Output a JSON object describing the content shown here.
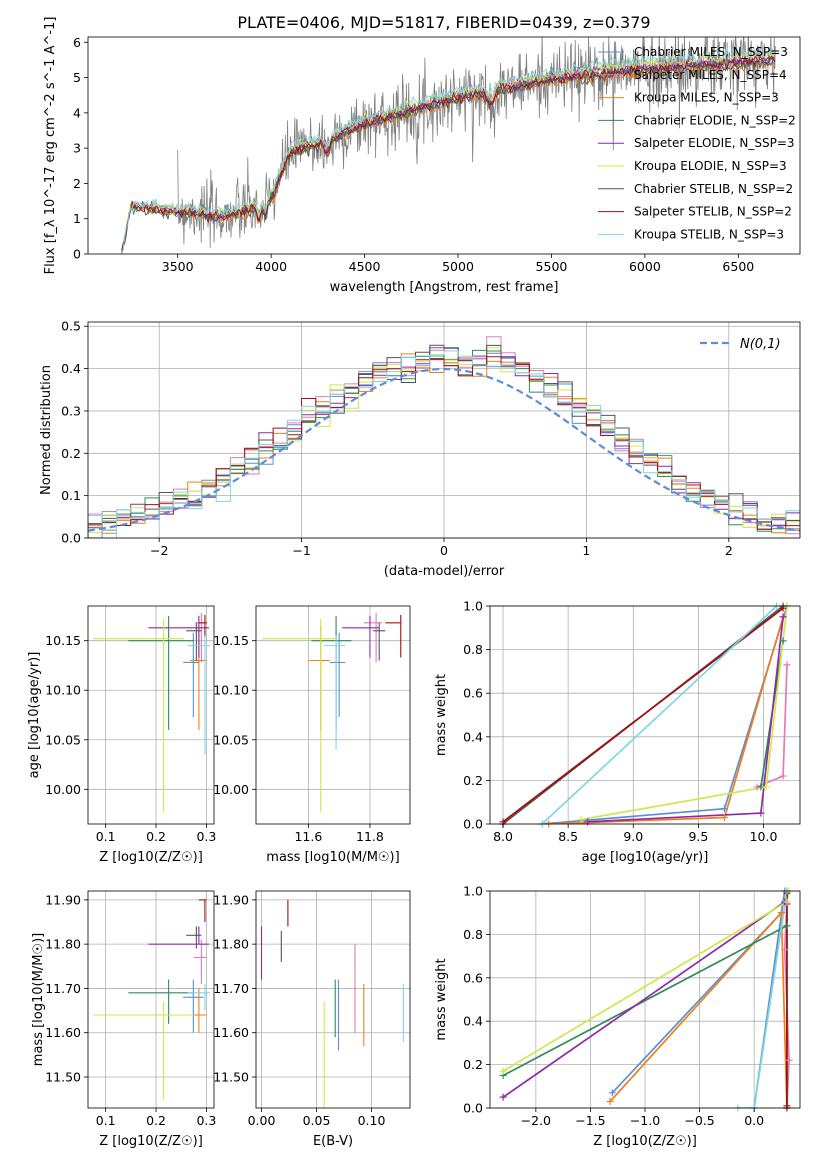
{
  "figure_title": "PLATE=0406, MJD=51817, FIBERID=0439, z=0.379",
  "colors": {
    "Chabrier MILES": "#5b8ed6",
    "Salpeter MILES": "#e37ab8",
    "Kroupa MILES": "#ef7f1a",
    "Chabrier ELODIE": "#2e8b57",
    "Salpeter ELODIE": "#8e2aa8",
    "Kroupa ELODIE": "#cde84a",
    "Chabrier STELIB": "#555555",
    "Salpeter STELIB": "#a01010",
    "Kroupa STELIB": "#7fd6e3",
    "data": "#808080",
    "gaussian": "#5b8ed6"
  },
  "legend_entries": [
    "Chabrier MILES, N_SSP=3",
    "Salpeter MILES, N_SSP=4",
    "Kroupa MILES, N_SSP=3",
    "Chabrier ELODIE, N_SSP=2",
    "Salpeter ELODIE, N_SSP=3",
    "Kroupa ELODIE, N_SSP=3",
    "Chabrier STELIB, N_SSP=2",
    "Salpeter STELIB, N_SSP=2",
    "Kroupa STELIB, N_SSP=3"
  ],
  "chart_data": [
    {
      "id": "spectrum",
      "type": "line",
      "xlabel": "wavelength [Angstrom, rest frame]",
      "ylabel": "Flux [f_λ 10^-17 erg cm^-2 s^-1 A^-1]",
      "xlim": [
        3020,
        6830
      ],
      "ylim": [
        0,
        6.15
      ],
      "xticks": [
        3500,
        4000,
        4500,
        5000,
        5500,
        6000,
        6500
      ],
      "yticks": [
        0,
        1,
        2,
        3,
        4,
        5,
        6
      ],
      "data_range": [
        3500,
        6700
      ],
      "model_range": [
        3200,
        6700
      ],
      "continuum_knots": {
        "x": [
          3200,
          3250,
          3500,
          3600,
          3700,
          3850,
          3950,
          4000,
          4100,
          4300,
          4500,
          4800,
          5000,
          5200,
          5500,
          5800,
          6000,
          6300,
          6700
        ],
        "y": [
          0.0,
          1.35,
          1.2,
          1.2,
          1.05,
          1.2,
          1.4,
          1.6,
          2.9,
          3.2,
          3.7,
          4.15,
          4.45,
          4.65,
          4.95,
          5.15,
          5.25,
          5.35,
          5.5
        ]
      },
      "model_offsets": [
        -0.05,
        0.08,
        -0.1,
        0.0,
        0.05,
        0.12,
        -0.08,
        -0.02,
        0.2
      ]
    },
    {
      "id": "residuals",
      "type": "histogram",
      "xlabel": "(data-model)/error",
      "ylabel": "Normed distribution",
      "xlim": [
        -2.5,
        2.5
      ],
      "ylim": [
        0,
        0.51
      ],
      "xticks": [
        -2,
        -1,
        0,
        1,
        2
      ],
      "yticks": [
        0.0,
        0.1,
        0.2,
        0.3,
        0.4,
        0.5
      ],
      "bin_width": 0.1,
      "reference_label": "N(0,1)"
    },
    {
      "id": "age_vs_Z",
      "type": "errorbar",
      "xlabel": "Z [log10(Z/Z☉)]",
      "ylabel": "age  [log10(age/yr)]",
      "xlim": [
        0.065,
        0.315
      ],
      "ylim": [
        9.965,
        10.185
      ],
      "xticks": [
        0.1,
        0.2,
        0.3
      ],
      "yticks": [
        10.0,
        10.05,
        10.1,
        10.15
      ],
      "points": [
        {
          "x": 0.274,
          "xerr": [
            0.02,
            0.012
          ],
          "y": 10.128,
          "yerr": [
            0.055,
            0.03
          ]
        },
        {
          "x": 0.29,
          "xerr": [
            0.012,
            0.012
          ],
          "y": 10.168,
          "yerr": [
            0.04,
            0.01
          ]
        },
        {
          "x": 0.285,
          "xerr": [
            0.018,
            0.015
          ],
          "y": 10.13,
          "yerr": [
            0.07,
            0.035
          ]
        },
        {
          "x": 0.225,
          "xerr": [
            0.08,
            0.05
          ],
          "y": 10.15,
          "yerr": [
            0.09,
            0.025
          ]
        },
        {
          "x": 0.285,
          "xerr": [
            0.1,
            0.02
          ],
          "y": 10.163,
          "yerr": [
            0.03,
            0.012
          ]
        },
        {
          "x": 0.215,
          "xerr": [
            0.14,
            0.04
          ],
          "y": 10.152,
          "yerr": [
            0.175,
            0.02
          ]
        },
        {
          "x": 0.28,
          "xerr": [
            0.02,
            0.01
          ],
          "y": 10.16,
          "yerr": [
            0.03,
            0.008
          ]
        },
        {
          "x": 0.297,
          "xerr": [
            0.012,
            0.003
          ],
          "y": 10.168,
          "yerr": [
            0.015,
            0.008
          ]
        },
        {
          "x": 0.297,
          "xerr": [
            0.035,
            0.01
          ],
          "y": 10.145,
          "yerr": [
            0.11,
            0.01
          ]
        }
      ]
    },
    {
      "id": "age_vs_mass",
      "type": "errorbar",
      "xlabel": "mass [log10(M/M☉)]",
      "ylabel": "",
      "xlim": [
        11.43,
        11.93
      ],
      "ylim": [
        9.965,
        10.185
      ],
      "xticks": [
        11.6,
        11.8
      ],
      "yticks": [
        10.0,
        10.05,
        10.1,
        10.15
      ],
      "points": [
        {
          "x": 11.7,
          "xerr": [
            0.03,
            0.02
          ],
          "y": 10.128,
          "yerr": [
            0.055,
            0.03
          ]
        },
        {
          "x": 11.82,
          "xerr": [
            0.04,
            0.02
          ],
          "y": 10.168,
          "yerr": [
            0.04,
            0.01
          ]
        },
        {
          "x": 11.64,
          "xerr": [
            0.04,
            0.03
          ],
          "y": 10.13,
          "yerr": [
            0.07,
            0.035
          ]
        },
        {
          "x": 11.69,
          "xerr": [
            0.08,
            0.05
          ],
          "y": 10.15,
          "yerr": [
            0.09,
            0.025
          ]
        },
        {
          "x": 11.8,
          "xerr": [
            0.09,
            0.03
          ],
          "y": 10.163,
          "yerr": [
            0.03,
            0.012
          ]
        },
        {
          "x": 11.64,
          "xerr": [
            0.19,
            0.05
          ],
          "y": 10.152,
          "yerr": [
            0.175,
            0.02
          ]
        },
        {
          "x": 11.83,
          "xerr": [
            0.02,
            0.02
          ],
          "y": 10.16,
          "yerr": [
            0.03,
            0.008
          ]
        },
        {
          "x": 11.9,
          "xerr": [
            0.05,
            0.0
          ],
          "y": 10.168,
          "yerr": [
            0.035,
            0.008
          ]
        },
        {
          "x": 11.69,
          "xerr": [
            0.04,
            0.03
          ],
          "y": 10.145,
          "yerr": [
            0.105,
            0.01
          ]
        }
      ]
    },
    {
      "id": "mass_weight_vs_age",
      "type": "line",
      "xlabel": "age  [log10(age/yr)]",
      "ylabel": "mass weight",
      "xlim": [
        7.9,
        10.28
      ],
      "ylim": [
        0.0,
        1.0
      ],
      "xticks": [
        8.0,
        8.5,
        9.0,
        9.5,
        10.0
      ],
      "yticks": [
        0.0,
        0.2,
        0.4,
        0.6,
        0.8,
        1.0
      ],
      "series": [
        {
          "x": [
            8.3,
            9.7,
            10.18
          ],
          "y": [
            0.0,
            0.07,
            1.0
          ]
        },
        {
          "x": [
            9.95,
            10.15,
            10.18
          ],
          "y": [
            0.17,
            0.22,
            0.73
          ]
        },
        {
          "x": [
            8.35,
            9.7,
            10.15
          ],
          "y": [
            0.0,
            0.03,
            0.95
          ]
        },
        {
          "x": [
            9.98,
            10.15
          ],
          "y": [
            0.17,
            0.84
          ]
        },
        {
          "x": [
            8.65,
            9.98,
            10.15
          ],
          "y": [
            0.01,
            0.05,
            0.95
          ]
        },
        {
          "x": [
            8.6,
            10.02,
            10.18
          ],
          "y": [
            0.02,
            0.17,
            1.0
          ]
        },
        {
          "x": [
            8.0,
            10.15
          ],
          "y": [
            0.0,
            1.0
          ]
        },
        {
          "x": [
            8.0,
            10.15
          ],
          "y": [
            0.01,
            0.99
          ]
        },
        {
          "x": [
            8.3,
            10.1
          ],
          "y": [
            0.0,
            1.0
          ]
        }
      ]
    },
    {
      "id": "mass_vs_Z",
      "type": "errorbar",
      "xlabel": "Z [log10(Z/Z☉)]",
      "ylabel": "mass [log10(M/M☉)]",
      "xlim": [
        0.065,
        0.315
      ],
      "ylim": [
        11.43,
        11.92
      ],
      "xticks": [
        0.1,
        0.2,
        0.3
      ],
      "yticks": [
        11.5,
        11.6,
        11.7,
        11.8,
        11.9
      ],
      "points": [
        {
          "x": 0.274,
          "xerr": [
            0.02,
            0.02
          ],
          "y": 11.68,
          "yerr": [
            0.08,
            0.04
          ]
        },
        {
          "x": 0.29,
          "xerr": [
            0.015,
            0.01
          ],
          "y": 11.77,
          "yerr": [
            0.06,
            0.04
          ]
        },
        {
          "x": 0.285,
          "xerr": [
            0.04,
            0.015
          ],
          "y": 11.64,
          "yerr": [
            0.04,
            0.06
          ]
        },
        {
          "x": 0.225,
          "xerr": [
            0.08,
            0.05
          ],
          "y": 11.69,
          "yerr": [
            0.07,
            0.03
          ]
        },
        {
          "x": 0.285,
          "xerr": [
            0.1,
            0.02
          ],
          "y": 11.8,
          "yerr": [
            0.0,
            0.04
          ]
        },
        {
          "x": 0.215,
          "xerr": [
            0.14,
            0.06
          ],
          "y": 11.64,
          "yerr": [
            0.19,
            0.03
          ]
        },
        {
          "x": 0.28,
          "xerr": [
            0.02,
            0.01
          ],
          "y": 11.82,
          "yerr": [
            0.03,
            0.02
          ]
        },
        {
          "x": 0.297,
          "xerr": [
            0.012,
            0.003
          ],
          "y": 11.9,
          "yerr": [
            0.05,
            0.0
          ]
        },
        {
          "x": 0.297,
          "xerr": [
            0.035,
            0.01
          ],
          "y": 11.69,
          "yerr": [
            0.04,
            0.02
          ]
        }
      ]
    },
    {
      "id": "mass_vs_EBV",
      "type": "errorbar",
      "xlabel": "E(B-V)",
      "ylabel": "",
      "xlim": [
        -0.005,
        0.135
      ],
      "ylim": [
        11.43,
        11.92
      ],
      "xticks": [
        0.0,
        0.05,
        0.1
      ],
      "yticks": [
        11.5,
        11.6,
        11.7,
        11.8,
        11.9
      ],
      "points": [
        {
          "x": 0.07,
          "yerr": [
            0.1,
            0.06
          ],
          "y": 11.66
        },
        {
          "x": 0.085,
          "yerr": [
            0.14,
            0.06
          ],
          "y": 11.74
        },
        {
          "x": 0.093,
          "yerr": [
            0.08,
            0.06
          ],
          "y": 11.65
        },
        {
          "x": 0.067,
          "yerr": [
            0.09,
            0.04
          ],
          "y": 11.68
        },
        {
          "x": 0.0,
          "yerr": [
            0.06,
            0.06
          ],
          "y": 11.78
        },
        {
          "x": 0.057,
          "yerr": [
            0.22,
            0.02
          ],
          "y": 11.65
        },
        {
          "x": 0.018,
          "yerr": [
            0.04,
            0.03
          ],
          "y": 11.8
        },
        {
          "x": 0.024,
          "yerr": [
            0.03,
            0.03
          ],
          "y": 11.87
        },
        {
          "x": 0.129,
          "yerr": [
            0.06,
            0.07
          ],
          "y": 11.64
        }
      ]
    },
    {
      "id": "mass_weight_vs_Z",
      "type": "line",
      "xlabel": "Z [log10(Z/Z☉)]",
      "ylabel": "mass weight",
      "xlim": [
        -2.42,
        0.42
      ],
      "ylim": [
        0.0,
        1.0
      ],
      "xticks": [
        -2.0,
        -1.5,
        -1.0,
        -0.5,
        0.0
      ],
      "yticks": [
        0.0,
        0.2,
        0.4,
        0.6,
        0.8,
        1.0
      ],
      "series": [
        {
          "x": [
            -1.3,
            0.25,
            0.28,
            0.0
          ],
          "y": [
            0.07,
            0.9,
            1.0,
            0.0
          ]
        },
        {
          "x": [
            0.3,
            0.32,
            0.28,
            0.3
          ],
          "y": [
            0.0,
            0.22,
            0.73,
            0.95
          ]
        },
        {
          "x": [
            -1.32,
            0.25,
            0.3
          ],
          "y": [
            0.03,
            0.9,
            0.0
          ]
        },
        {
          "x": [
            -2.3,
            0.3
          ],
          "y": [
            0.15,
            0.84
          ]
        },
        {
          "x": [
            -2.3,
            0.28,
            0.3
          ],
          "y": [
            0.05,
            0.95,
            0.94
          ]
        },
        {
          "x": [
            -2.3,
            0.3,
            0.32
          ],
          "y": [
            0.17,
            0.95,
            1.0
          ]
        },
        {
          "x": [
            0.3,
            0.3
          ],
          "y": [
            0.0,
            1.0
          ]
        },
        {
          "x": [
            0.3,
            0.3
          ],
          "y": [
            0.01,
            0.99
          ]
        },
        {
          "x": [
            -0.15,
            0.0,
            0.3
          ],
          "y": [
            0.0,
            0.0,
            1.0
          ]
        }
      ]
    }
  ]
}
